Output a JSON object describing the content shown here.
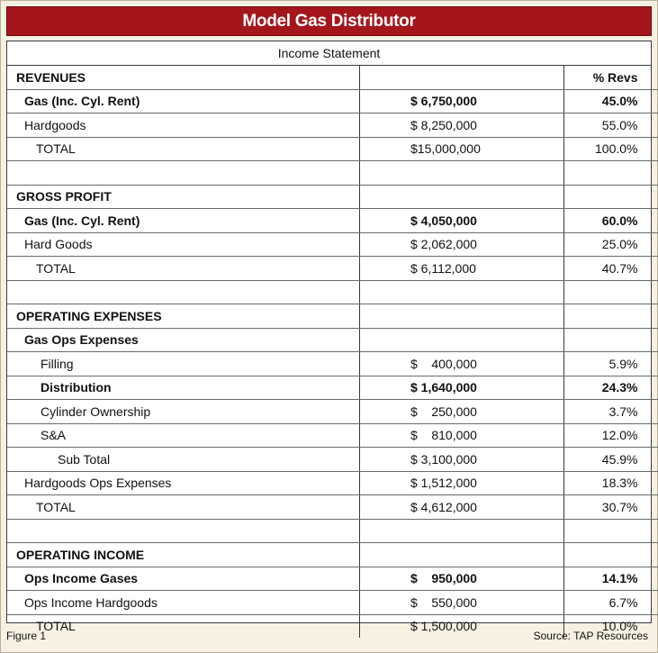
{
  "title": "Model Gas Distributor",
  "subtitle": "Income Statement",
  "rows": [
    {
      "label": "REVENUES",
      "amount": "",
      "pct": "% Revs",
      "style": "b i0"
    },
    {
      "label": "Gas (Inc. Cyl. Rent)",
      "amount": "$ 6,750,000",
      "pct": "45.0%",
      "style": "b i1"
    },
    {
      "label": "Hardgoods",
      "amount": "$ 8,250,000",
      "pct": "55.0%",
      "style": "i1"
    },
    {
      "label": "TOTAL",
      "amount": "$15,000,000",
      "pct": "100.0%",
      "style": "i3"
    },
    {
      "label": "",
      "amount": "",
      "pct": "",
      "style": "i0"
    },
    {
      "label": "GROSS PROFIT",
      "amount": "",
      "pct": "",
      "style": "b i0"
    },
    {
      "label": "Gas (Inc. Cyl. Rent)",
      "amount": "$ 4,050,000",
      "pct": "60.0%",
      "style": "b i1"
    },
    {
      "label": "Hard Goods",
      "amount": "$ 2,062,000",
      "pct": "25.0%",
      "style": "i1"
    },
    {
      "label": "TOTAL",
      "amount": "$ 6,112,000",
      "pct": "40.7%",
      "style": "i3"
    },
    {
      "label": "",
      "amount": "",
      "pct": "",
      "style": "i0"
    },
    {
      "label": "OPERATING EXPENSES",
      "amount": "",
      "pct": "",
      "style": "b i0"
    },
    {
      "label": "Gas Ops Expenses",
      "amount": "",
      "pct": "",
      "style": "b i1"
    },
    {
      "label": "Filling",
      "amount": "$    400,000",
      "pct": "5.9%",
      "style": "i2"
    },
    {
      "label": "Distribution",
      "amount": "$ 1,640,000",
      "pct": "24.3%",
      "style": "b i2"
    },
    {
      "label": "Cylinder Ownership",
      "amount": "$    250,000",
      "pct": "3.7%",
      "style": "i2"
    },
    {
      "label": "S&A",
      "amount": "$    810,000",
      "pct": "12.0%",
      "style": "i2"
    },
    {
      "label": "Sub Total",
      "amount": "$ 3,100,000",
      "pct": "45.9%",
      "style": "i4"
    },
    {
      "label": "Hardgoods Ops Expenses",
      "amount": "$ 1,512,000",
      "pct": "18.3%",
      "style": "i1"
    },
    {
      "label": "TOTAL",
      "amount": "$ 4,612,000",
      "pct": "30.7%",
      "style": "i3"
    },
    {
      "label": "",
      "amount": "",
      "pct": "",
      "style": "i0"
    },
    {
      "label": "OPERATING INCOME",
      "amount": "",
      "pct": "",
      "style": "b i0"
    },
    {
      "label": "Ops Income Gases",
      "amount": "$    950,000",
      "pct": "14.1%",
      "style": "b i1"
    },
    {
      "label": "Ops Income Hardgoods",
      "amount": "$    550,000",
      "pct": "6.7%",
      "style": "i1"
    },
    {
      "label": "TOTAL",
      "amount": "$ 1,500,000",
      "pct": "10.0%",
      "style": "i3"
    }
  ],
  "footer": {
    "figure": "Figure 1",
    "source": "Source: TAP Resources"
  },
  "colors": {
    "title_bar": "#a4161c",
    "background": "#f6f1e3"
  }
}
